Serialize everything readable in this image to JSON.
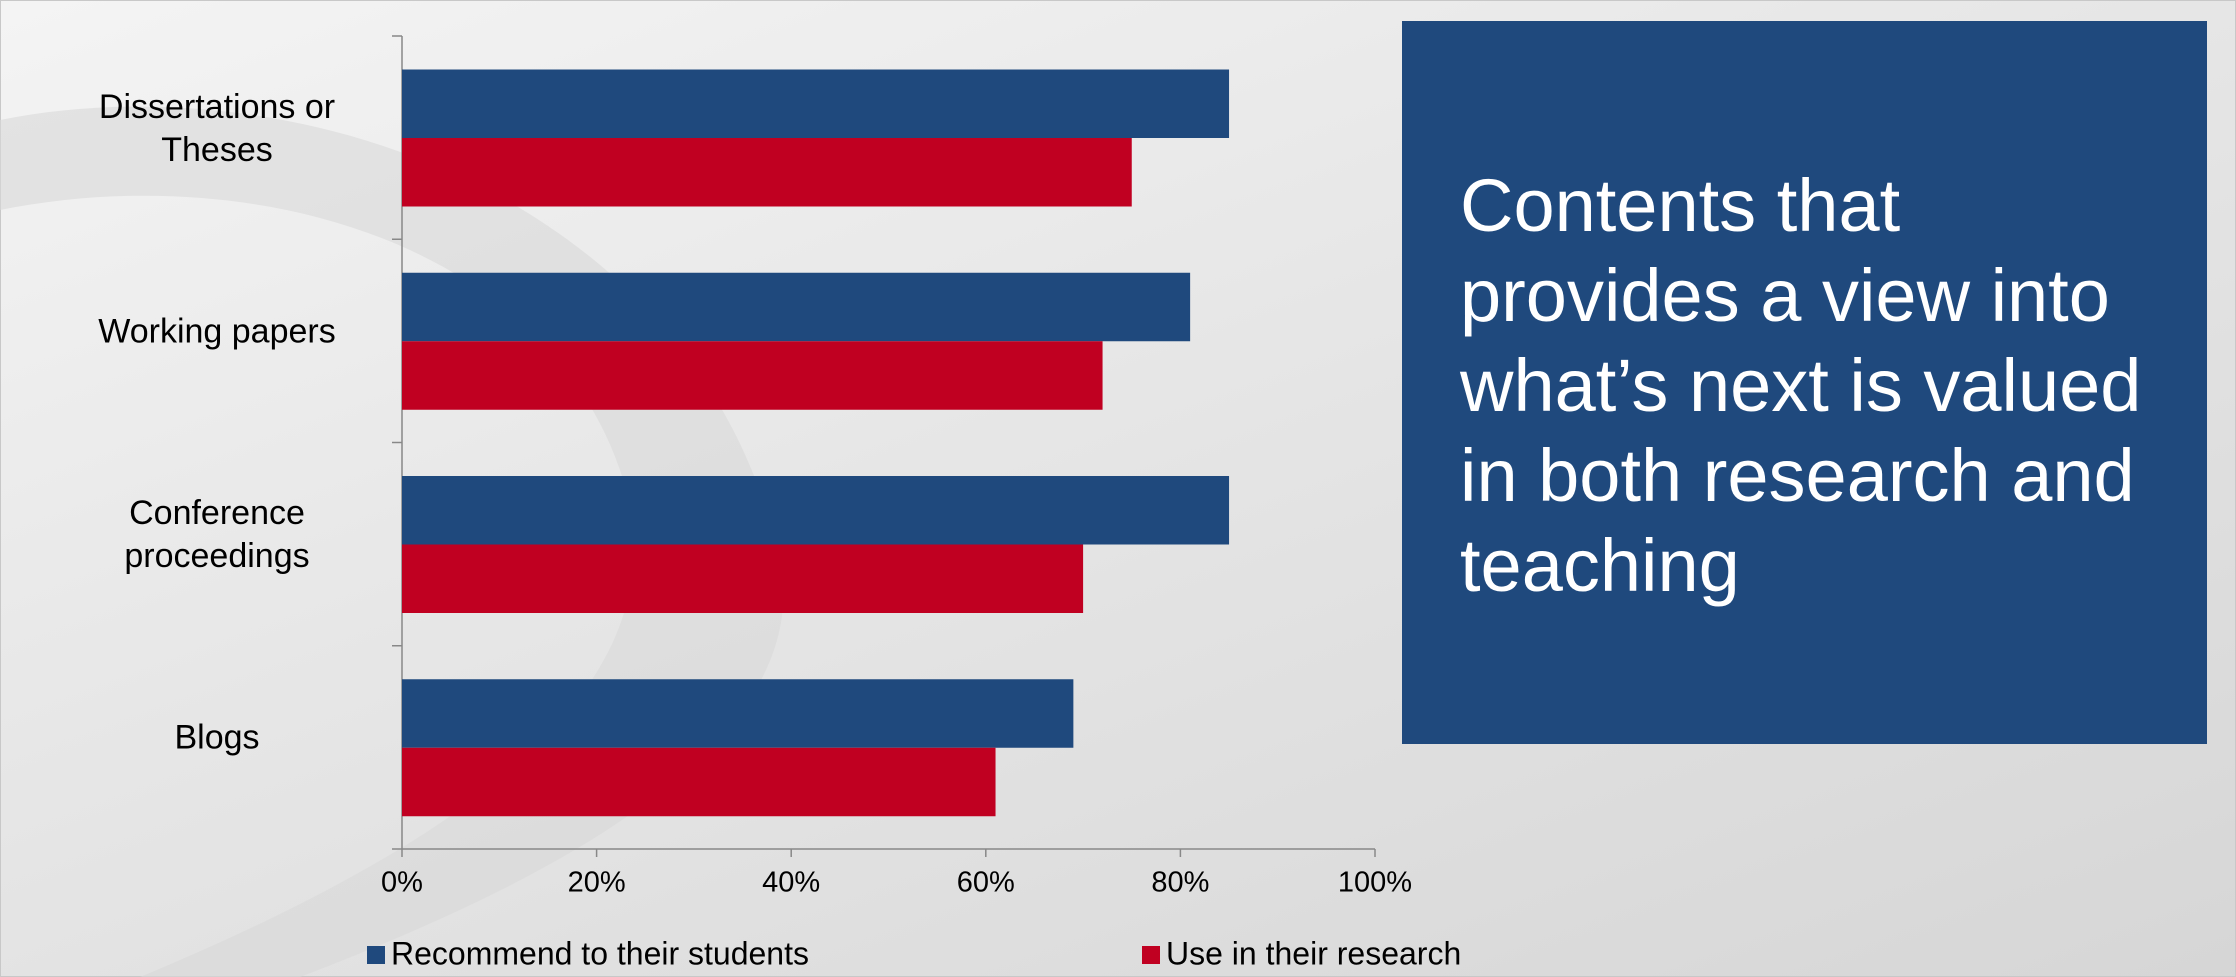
{
  "chart_data": {
    "type": "bar",
    "orientation": "horizontal",
    "categories": [
      "Dissertations or Theses",
      "Working papers",
      "Conference proceedings",
      "Blogs"
    ],
    "series": [
      {
        "name": "Recommend to their students",
        "color": "#1f497d",
        "values": [
          85,
          81,
          85,
          69
        ]
      },
      {
        "name": "Use in their research",
        "color": "#c00021",
        "values": [
          75,
          72,
          70,
          61
        ]
      }
    ],
    "xlim": [
      0,
      100
    ],
    "xticks": [
      {
        "value": 0,
        "label": "0%"
      },
      {
        "value": 20,
        "label": "20%"
      },
      {
        "value": 40,
        "label": "40%"
      },
      {
        "value": 60,
        "label": "60%"
      },
      {
        "value": 80,
        "label": "80%"
      },
      {
        "value": 100,
        "label": "100%"
      }
    ],
    "legend": "bottom",
    "annotation": "Contents that provides a view into what’s next is valued in both research and teaching"
  }
}
